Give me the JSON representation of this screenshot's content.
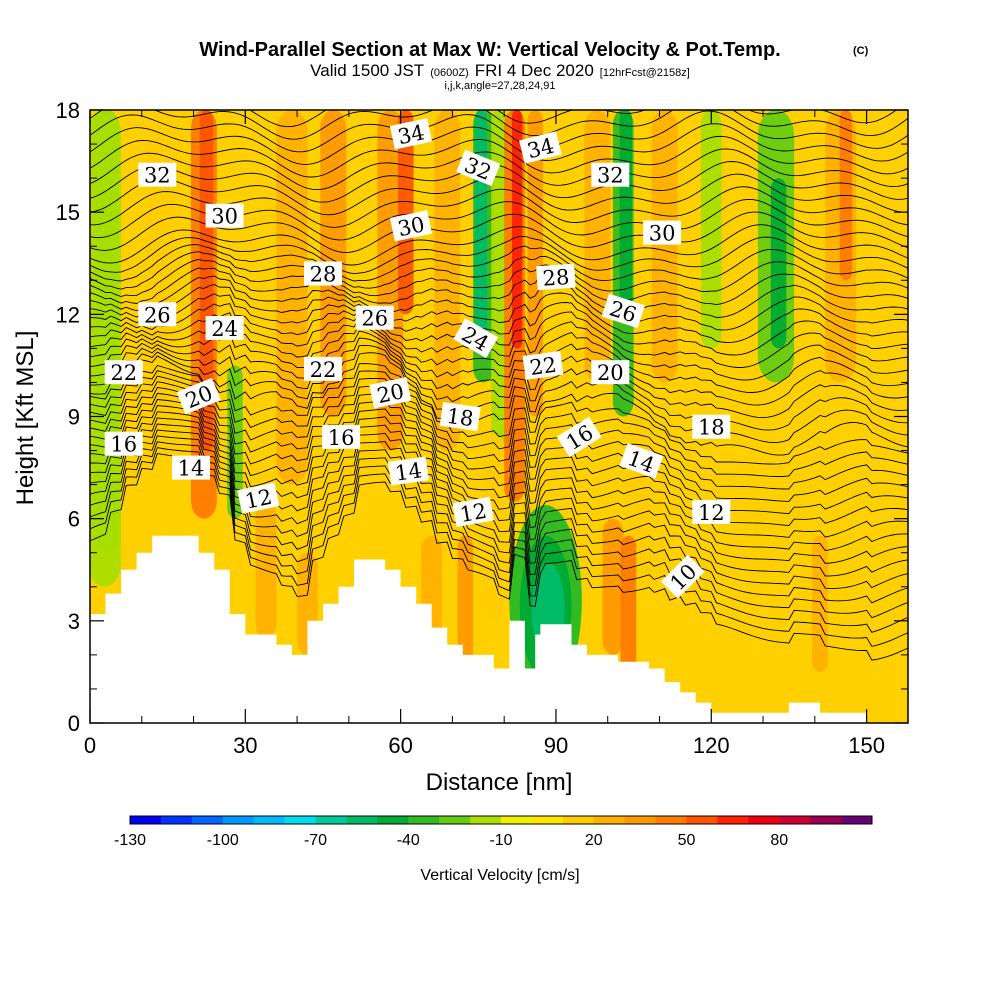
{
  "chart_data": {
    "type": "heatmap",
    "title": "Wind-Parallel Section at Max W: Vertical Velocity & Pot.Temp.",
    "title_mark": "(C)",
    "subtitle_a": "Valid 1500 JST",
    "subtitle_b": "(0600Z)",
    "subtitle_c": "FRI 4 Dec 2020",
    "subtitle_d": "[12hrFcst@2158z]",
    "subtitle2": "i,j,k,angle=27,28,24,91",
    "xlabel": "Distance [nm]",
    "ylabel": "Height [Kft MSL]",
    "xlim": [
      0,
      158
    ],
    "ylim": [
      0,
      18
    ],
    "xticks": [
      0,
      30,
      60,
      90,
      120,
      150
    ],
    "xtick_labels": [
      "0",
      "30",
      "60",
      "90",
      "120",
      "150"
    ],
    "yticks": [
      0,
      3,
      6,
      9,
      12,
      15,
      18
    ],
    "ytick_labels": [
      "0",
      "3",
      "6",
      "9",
      "12",
      "15",
      "18"
    ],
    "colorbar": {
      "label": "Vertical Velocity [cm/s]",
      "levels": [
        -130,
        -120,
        -110,
        -100,
        -90,
        -80,
        -70,
        -60,
        -50,
        -40,
        -30,
        -20,
        -10,
        0,
        10,
        20,
        30,
        40,
        50,
        60,
        70,
        80,
        90,
        100
      ],
      "tick_values": [
        -130,
        -100,
        -70,
        -40,
        -10,
        20,
        50,
        80
      ],
      "tick_labels": [
        "-130",
        "-100",
        "-70",
        "-40",
        "-10",
        "20",
        "50",
        "80"
      ],
      "colors": [
        "#0000ee",
        "#0033ff",
        "#0066ff",
        "#0099ff",
        "#00bbff",
        "#00ddee",
        "#00cc99",
        "#00bb66",
        "#00aa33",
        "#33bb22",
        "#66cc11",
        "#aade00",
        "#eef000",
        "#ffe600",
        "#ffcc00",
        "#ffb000",
        "#ff9900",
        "#ff7a00",
        "#ff5500",
        "#ff2200",
        "#ee0011",
        "#cc0033",
        "#990055",
        "#660077"
      ]
    },
    "series": [
      {
        "name": "theta",
        "contour_labels": [
          {
            "label": "32",
            "x": 13,
            "y": 16.1,
            "rot": 0
          },
          {
            "label": "30",
            "x": 26,
            "y": 14.9,
            "rot": 0
          },
          {
            "label": "28",
            "x": 45,
            "y": 13.2,
            "rot": 0
          },
          {
            "label": "26",
            "x": 13,
            "y": 12.0,
            "rot": 0
          },
          {
            "label": "24",
            "x": 26,
            "y": 11.6,
            "rot": 0
          },
          {
            "label": "22",
            "x": 6.5,
            "y": 10.3,
            "rot": 0
          },
          {
            "label": "20",
            "x": 21,
            "y": 9.6,
            "rot": -22
          },
          {
            "label": "16",
            "x": 6.5,
            "y": 8.2,
            "rot": 0
          },
          {
            "label": "14",
            "x": 19.5,
            "y": 7.5,
            "rot": 0
          },
          {
            "label": "12",
            "x": 32.5,
            "y": 6.6,
            "rot": -12
          },
          {
            "label": "22",
            "x": 45,
            "y": 10.4,
            "rot": 0
          },
          {
            "label": "16",
            "x": 48.5,
            "y": 8.4,
            "rot": 0
          },
          {
            "label": "26",
            "x": 55,
            "y": 11.9,
            "rot": 0
          },
          {
            "label": "20",
            "x": 58,
            "y": 9.7,
            "rot": -12
          },
          {
            "label": "14",
            "x": 61.5,
            "y": 7.4,
            "rot": -8
          },
          {
            "label": "34",
            "x": 62,
            "y": 17.3,
            "rot": -12
          },
          {
            "label": "30",
            "x": 62,
            "y": 14.6,
            "rot": -12
          },
          {
            "label": "18",
            "x": 71.5,
            "y": 9.0,
            "rot": 8
          },
          {
            "label": "12",
            "x": 74,
            "y": 6.2,
            "rot": -10
          },
          {
            "label": "32",
            "x": 75,
            "y": 16.3,
            "rot": 22
          },
          {
            "label": "24",
            "x": 74.5,
            "y": 11.3,
            "rot": 30
          },
          {
            "label": "34",
            "x": 87,
            "y": 16.9,
            "rot": -14
          },
          {
            "label": "28",
            "x": 90,
            "y": 13.1,
            "rot": -4
          },
          {
            "label": "22",
            "x": 87.5,
            "y": 10.5,
            "rot": -8
          },
          {
            "label": "16",
            "x": 94.5,
            "y": 8.4,
            "rot": -32
          },
          {
            "label": "32",
            "x": 100.5,
            "y": 16.1,
            "rot": 0
          },
          {
            "label": "26",
            "x": 103,
            "y": 12.1,
            "rot": 18
          },
          {
            "label": "20",
            "x": 100.5,
            "y": 10.3,
            "rot": 0
          },
          {
            "label": "30",
            "x": 110.5,
            "y": 14.4,
            "rot": 0
          },
          {
            "label": "14",
            "x": 106.5,
            "y": 7.7,
            "rot": 20
          },
          {
            "label": "18",
            "x": 120,
            "y": 8.7,
            "rot": 0
          },
          {
            "label": "12",
            "x": 120,
            "y": 6.2,
            "rot": 0
          },
          {
            "label": "10",
            "x": 114.5,
            "y": 4.3,
            "rot": -45
          }
        ]
      }
    ]
  }
}
